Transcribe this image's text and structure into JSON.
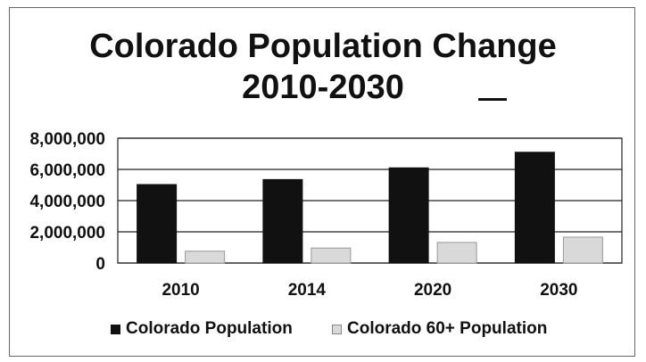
{
  "chart_data": {
    "type": "bar",
    "title": "Colorado Population Change",
    "subtitle": "2010-2030",
    "categories": [
      "2010",
      "2014",
      "2020",
      "2030"
    ],
    "series": [
      {
        "name": "Colorado Population",
        "values": [
          5030000,
          5350000,
          6100000,
          7100000
        ],
        "color": "#111111"
      },
      {
        "name": "Colorado 60+ Population",
        "values": [
          760000,
          960000,
          1320000,
          1660000
        ],
        "color": "#d9d9d9"
      }
    ],
    "y_ticks": [
      "8,000,000",
      "6,000,000",
      "4,000,000",
      "2,000,000",
      "0"
    ],
    "ylim": [
      0,
      8000000
    ],
    "grid": true,
    "legend_position": "bottom"
  }
}
